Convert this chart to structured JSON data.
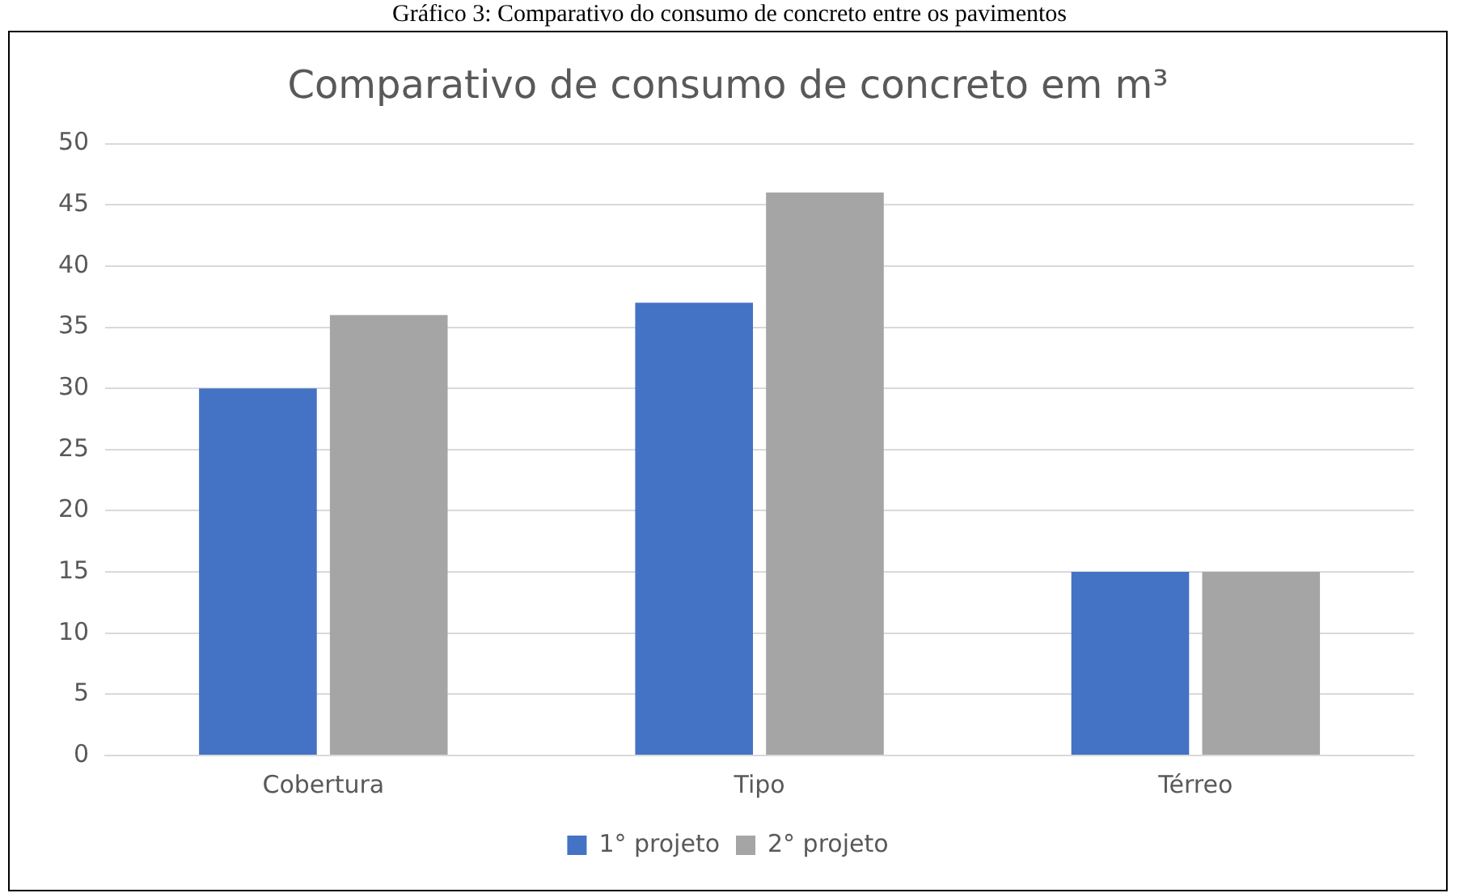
{
  "chart_data": {
    "type": "bar",
    "title": "Comparativo de consumo de concreto em m³",
    "annotations": [
      "Gráfico 3: Comparativo do consumo de concreto entre os pavimentos"
    ],
    "categories": [
      "Cobertura",
      "Tipo",
      "Térreo"
    ],
    "series": [
      {
        "name": "1° projeto",
        "color": "#4472c4",
        "values": [
          30,
          37,
          15
        ]
      },
      {
        "name": "2° projeto",
        "color": "#a5a5a5",
        "values": [
          36,
          46,
          15
        ]
      }
    ],
    "ylim": [
      0,
      50
    ],
    "yticks": [
      0,
      5,
      10,
      15,
      20,
      25,
      30,
      35,
      40,
      45,
      50
    ],
    "grid": "y",
    "legend": "bottom"
  }
}
